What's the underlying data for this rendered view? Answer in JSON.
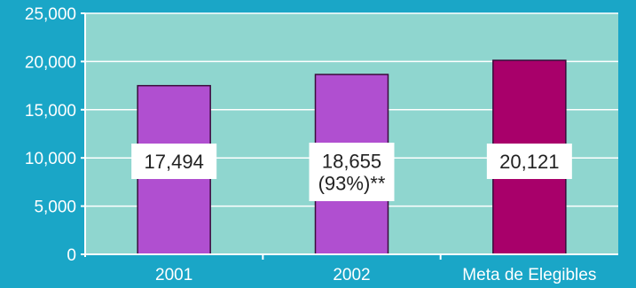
{
  "colors": {
    "page_background": "#1aa6c7",
    "plot_background": "#8fd6cf",
    "gridline": "#ffffff",
    "axis": "#ffffff",
    "bar_default": "#b04fd0",
    "bar_highlight": "#a8006a",
    "bar_border": "#3a0a3a",
    "label_box": "#ffffff",
    "label_text": "#222222",
    "tick_text": "#ffffff"
  },
  "chart_data": {
    "type": "bar",
    "title": "",
    "xlabel": "",
    "ylabel": "",
    "ylim": [
      0,
      25000
    ],
    "yticks": [
      0,
      5000,
      10000,
      15000,
      20000,
      25000
    ],
    "ytick_labels": [
      "0",
      "5,000",
      "10,000",
      "15,000",
      "20,000",
      "25,000"
    ],
    "grid": true,
    "legend": "none",
    "categories": [
      "2001",
      "2002",
      "Meta de Elegibles"
    ],
    "values": [
      17494,
      18655,
      20121
    ],
    "data_labels": [
      [
        "17,494"
      ],
      [
        "18,655",
        "(93%)**"
      ],
      [
        "20,121"
      ]
    ],
    "bar_colors": [
      "#b04fd0",
      "#b04fd0",
      "#a8006a"
    ]
  }
}
